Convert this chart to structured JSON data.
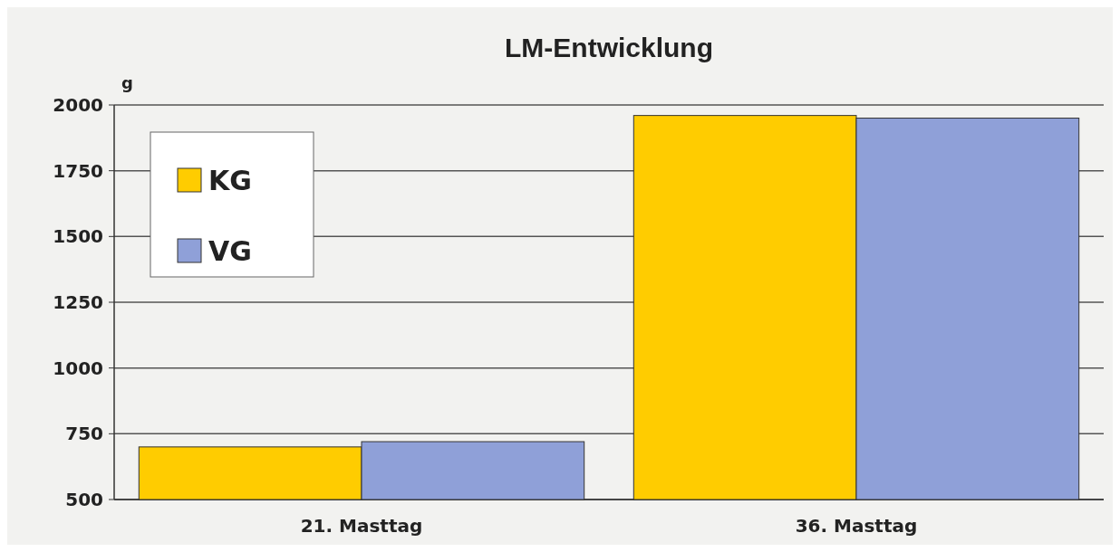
{
  "chart_data": {
    "type": "bar",
    "title": "LM-Entwicklung",
    "ylabel": "g",
    "categories": [
      "21. Masttag",
      "36. Masttag"
    ],
    "series": [
      {
        "name": "KG",
        "color": "#ffcc00",
        "values": [
          700,
          1960
        ]
      },
      {
        "name": "VG",
        "color": "#8fa0d8",
        "values": [
          720,
          1950
        ]
      }
    ],
    "ylim": [
      500,
      2000
    ],
    "yticks": [
      500,
      750,
      1000,
      1250,
      1500,
      1750,
      2000
    ],
    "grid": "y",
    "legend": "top left"
  }
}
